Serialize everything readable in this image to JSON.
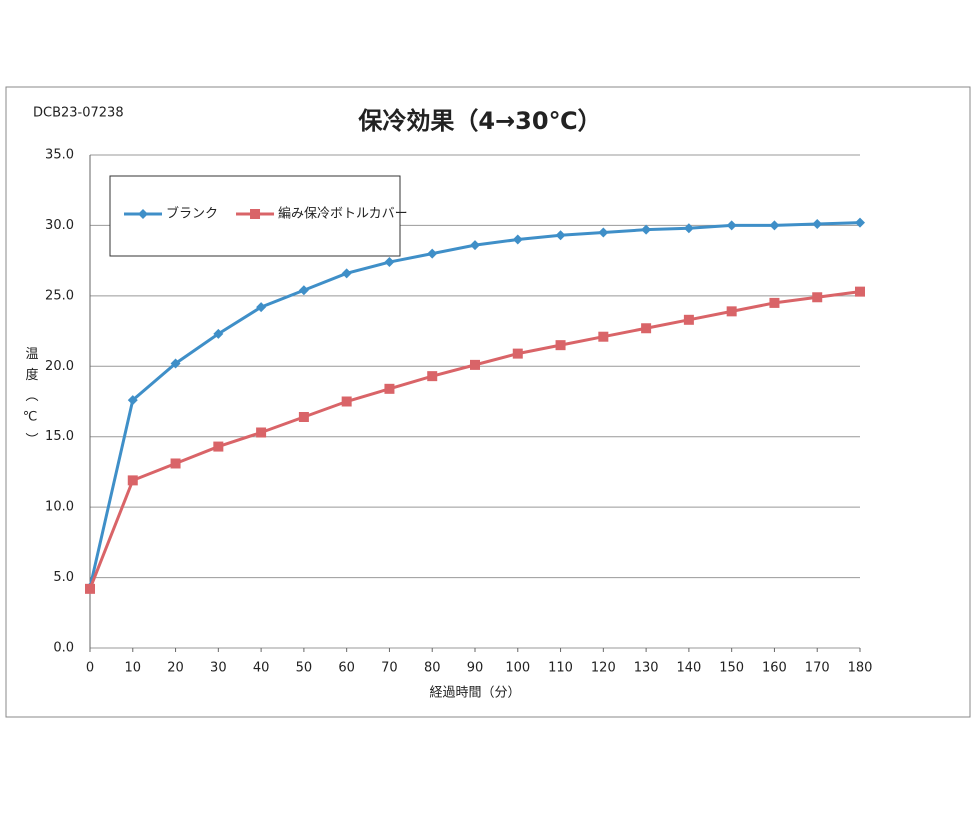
{
  "chart_data": {
    "type": "line",
    "code": "DCB23-07238",
    "title": "保冷効果（4→30℃）",
    "x_label": "経過時間（分）",
    "y_label": "温度（℃）",
    "x": [
      0,
      10,
      20,
      30,
      40,
      50,
      60,
      70,
      80,
      90,
      100,
      110,
      120,
      130,
      140,
      150,
      160,
      170,
      180
    ],
    "series": [
      {
        "name": "ブランク",
        "color": "#3f8fc8",
        "marker": "diamond",
        "values": [
          4.3,
          17.6,
          20.2,
          22.3,
          24.2,
          25.4,
          26.6,
          27.4,
          28.0,
          28.6,
          29.0,
          29.3,
          29.5,
          29.7,
          29.8,
          30.0,
          30.0,
          30.1,
          30.2
        ]
      },
      {
        "name": "編み保冷ボトルカバー",
        "color": "#d96468",
        "marker": "square",
        "values": [
          4.2,
          11.9,
          13.1,
          14.3,
          15.3,
          16.4,
          17.5,
          18.4,
          19.3,
          20.1,
          20.9,
          21.5,
          22.1,
          22.7,
          23.3,
          23.9,
          24.5,
          24.9,
          25.3
        ]
      }
    ],
    "xlim": [
      0,
      180
    ],
    "xticks": [
      0,
      10,
      20,
      30,
      40,
      50,
      60,
      70,
      80,
      90,
      100,
      110,
      120,
      130,
      140,
      150,
      160,
      170,
      180
    ],
    "ylim": [
      0,
      35
    ],
    "yticks": [
      {
        "value": 0,
        "label": "0.0"
      },
      {
        "value": 5,
        "label": "5.0"
      },
      {
        "value": 10,
        "label": "10.0"
      },
      {
        "value": 15,
        "label": "15.0"
      },
      {
        "value": 20,
        "label": "20.0"
      },
      {
        "value": 25,
        "label": "25.0"
      },
      {
        "value": 30,
        "label": "30.0"
      },
      {
        "value": 35,
        "label": "35.0"
      }
    ],
    "grid": true,
    "legend": "upper left"
  }
}
